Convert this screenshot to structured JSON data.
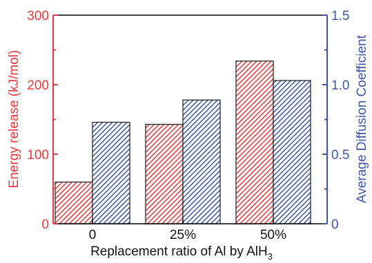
{
  "chart_data": {
    "type": "bar",
    "categories": [
      "0",
      "25%",
      "50%"
    ],
    "xlabel": "Replacement ratio of Al by AlH",
    "xlabel_subscript": "3",
    "y_left": {
      "label": "Energy release (kJ/mol)",
      "lim": [
        0,
        300
      ],
      "ticks": [
        "0",
        "100",
        "200",
        "300"
      ],
      "color": "#e8393c"
    },
    "y_right": {
      "label": "Average Diffusion Coefficient",
      "lim": [
        0,
        1.5
      ],
      "ticks": [
        "0",
        "0.5",
        "1.0",
        "1.5"
      ],
      "color": "#3d56a6"
    },
    "series": [
      {
        "axis": "left",
        "values": [
          60,
          143,
          234
        ],
        "color": "#e8393c"
      },
      {
        "axis": "right",
        "values": [
          0.73,
          0.89,
          1.03
        ],
        "color": "#3d56a6"
      }
    ],
    "legend": "none",
    "grid": false
  }
}
